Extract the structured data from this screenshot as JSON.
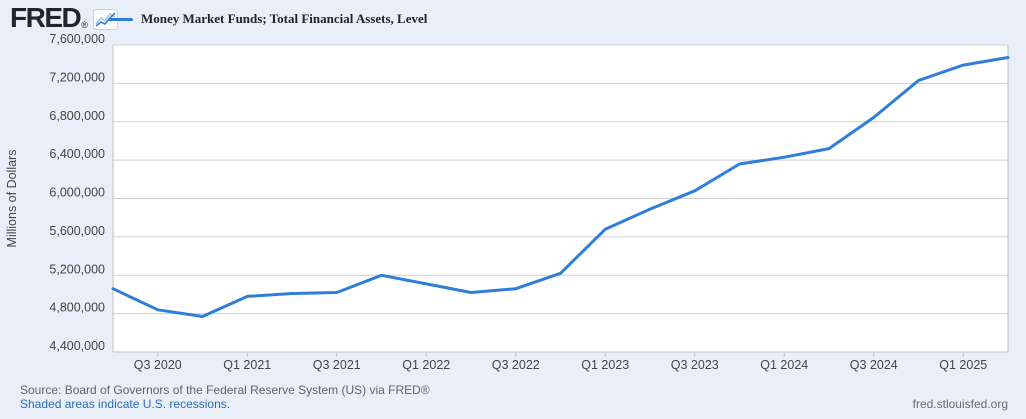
{
  "header": {
    "logo_text": "FRED",
    "logo_mark": "®",
    "legend": {
      "series_label": "Money Market Funds; Total Financial Assets, Level",
      "series_color": "#2f7ed8"
    }
  },
  "chart_data": {
    "type": "line",
    "title": "Money Market Funds; Total Financial Assets, Level",
    "xlabel": "",
    "ylabel": "Millions of Dollars",
    "x": [
      "Q2 2020",
      "Q3 2020",
      "Q4 2020",
      "Q1 2021",
      "Q2 2021",
      "Q3 2021",
      "Q4 2021",
      "Q1 2022",
      "Q2 2022",
      "Q3 2022",
      "Q4 2022",
      "Q1 2023",
      "Q2 2023",
      "Q3 2023",
      "Q4 2023",
      "Q1 2024",
      "Q2 2024",
      "Q3 2024",
      "Q4 2024",
      "Q1 2025",
      "Q2 2025"
    ],
    "series": [
      {
        "name": "Money Market Funds; Total Financial Assets, Level",
        "values": [
          5060000,
          4840000,
          4770000,
          4980000,
          5010000,
          5020000,
          5200000,
          5110000,
          5020000,
          5060000,
          5220000,
          5680000,
          5890000,
          6080000,
          6360000,
          6430000,
          6520000,
          6845000,
          7230000,
          7390000,
          7470000
        ]
      }
    ],
    "x_tick_labels": [
      "Q3 2020",
      "Q1 2021",
      "Q3 2021",
      "Q1 2022",
      "Q3 2022",
      "Q1 2023",
      "Q3 2023",
      "Q1 2024",
      "Q3 2024",
      "Q1 2025"
    ],
    "y_ticks": [
      4400000,
      4800000,
      5200000,
      5600000,
      6000000,
      6400000,
      6800000,
      7200000,
      7600000
    ],
    "ylim": [
      4400000,
      7600000
    ],
    "grid": true,
    "legend_position": "top",
    "line_color": "#2f7ed8",
    "colors": {
      "background": "#e9eff8",
      "plot_background": "#ffffff",
      "gridline": "#cfcfcf",
      "axis_border": "#bfbfbf",
      "tick_label": "#444444"
    }
  },
  "footer": {
    "source_line": "Source: Board of Governors of the Federal Reserve System (US) via FRED®",
    "recessions_note": "Shaded areas indicate U.S. recessions.",
    "site_url": "fred.stlouisfed.org"
  }
}
